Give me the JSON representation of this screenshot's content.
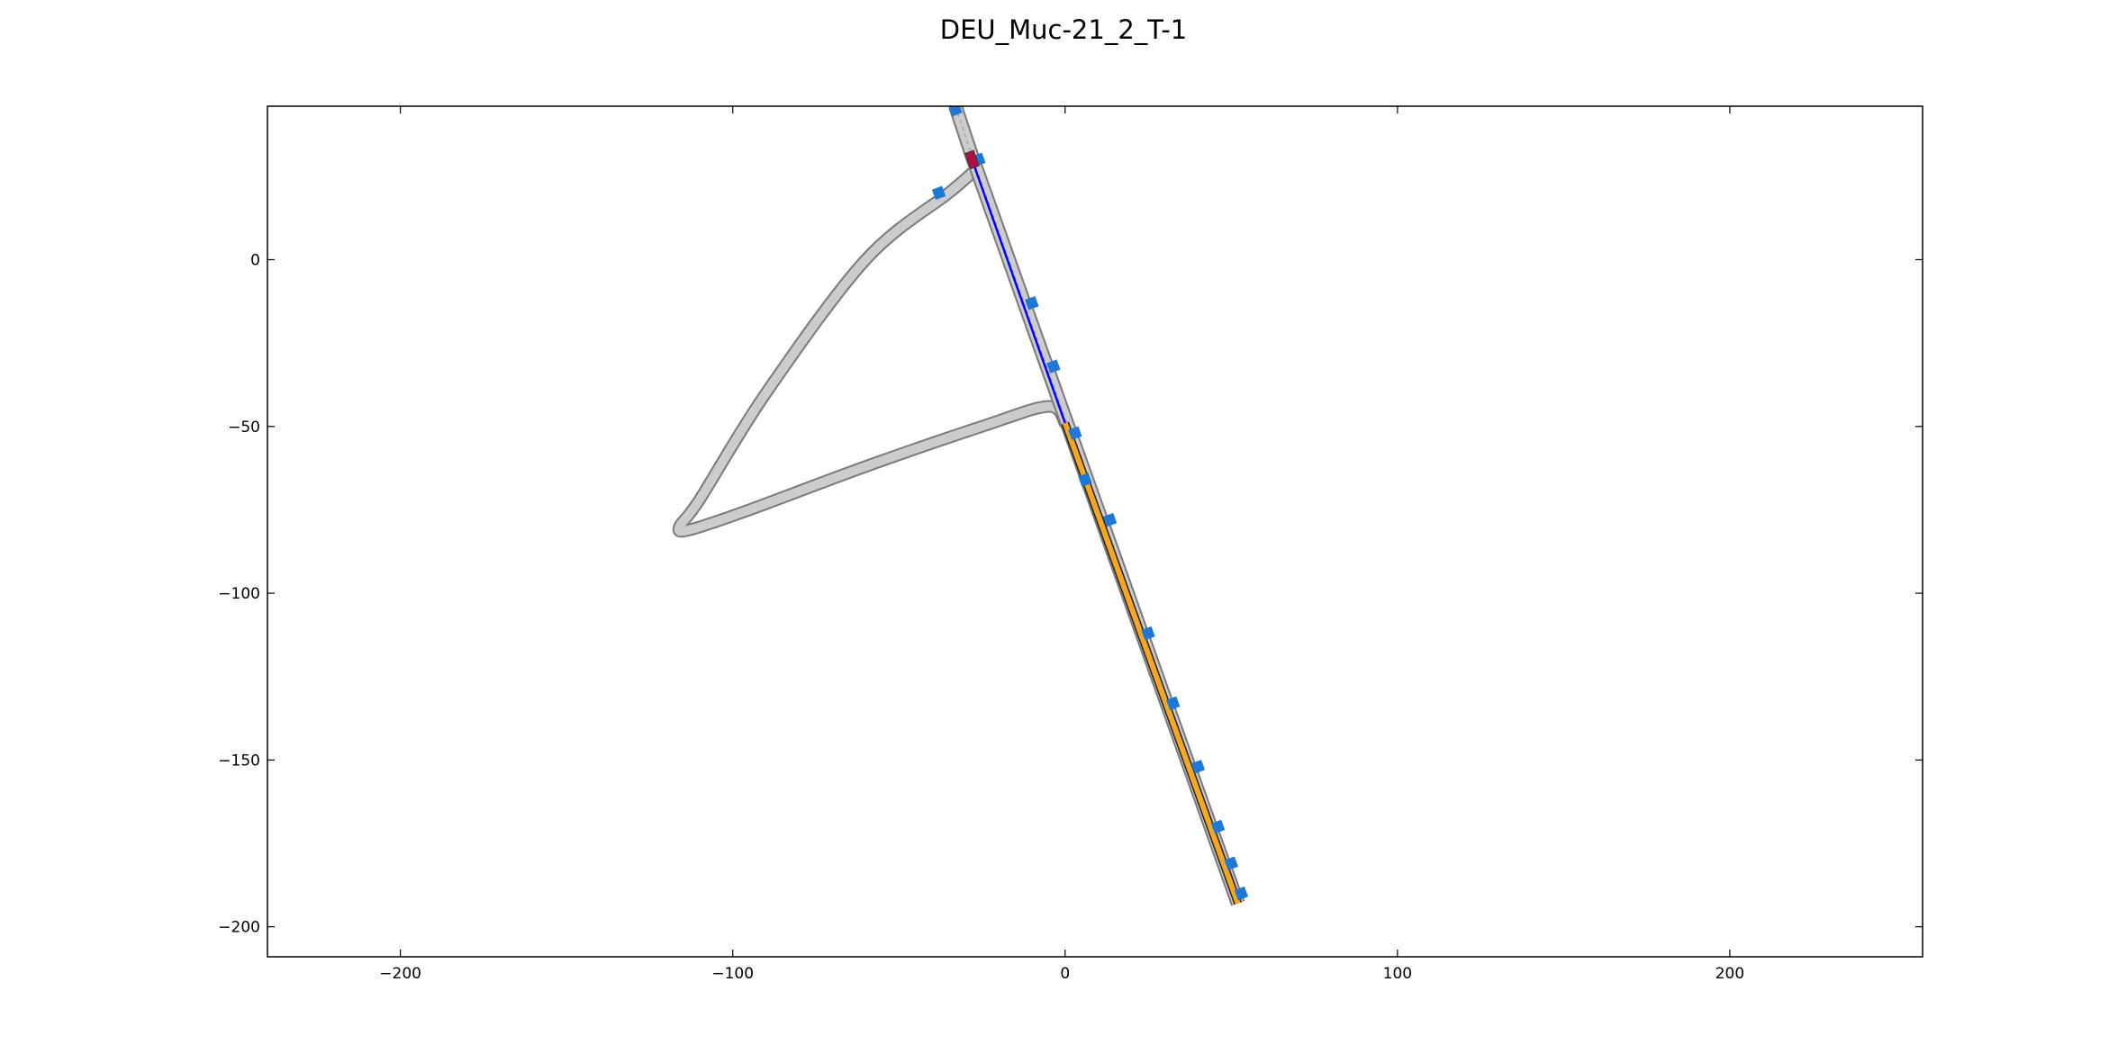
{
  "title": "DEU_Muc-21_2_T-1",
  "axes": {
    "xlim": [
      -240,
      258
    ],
    "ylim": [
      -209,
      46
    ],
    "xticks": [
      {
        "value": -200,
        "label": "−200"
      },
      {
        "value": -100,
        "label": "−100"
      },
      {
        "value": 0,
        "label": "0"
      },
      {
        "value": 100,
        "label": "100"
      },
      {
        "value": 200,
        "label": "200"
      }
    ],
    "yticks": [
      {
        "value": 0,
        "label": "0"
      },
      {
        "value": -50,
        "label": "−50"
      },
      {
        "value": -100,
        "label": "−100"
      },
      {
        "value": -150,
        "label": "−150"
      },
      {
        "value": -200,
        "label": "−200"
      }
    ],
    "grid": false
  },
  "colors": {
    "road_fill": "#cccccc",
    "road_edge": "#7a7a7a",
    "marker_blue": "#1f78d4",
    "planned_route": "#0000ff",
    "ego_start": "#b01040",
    "goal_fill": "#f5a623",
    "goal_edge": "#222222"
  },
  "scene": {
    "main_road": {
      "x": [
        -33,
        -28,
        52
      ],
      "y": [
        46,
        31,
        -193
      ]
    },
    "loop_road": {
      "x": [
        -28,
        -35,
        -60,
        -90,
        -110,
        -116,
        -113,
        -95,
        -60,
        -25,
        -5,
        0
      ],
      "y": [
        26,
        20,
        0,
        -40,
        -72,
        -80,
        -81,
        -75,
        -62,
        -50,
        -44,
        -49
      ]
    },
    "markers": {
      "x": [
        -33,
        -26,
        -38,
        -10,
        -3.5,
        3,
        6,
        13.5,
        25,
        32.5,
        40,
        46,
        50,
        53
      ],
      "y": [
        45,
        30,
        20,
        -13,
        -32,
        -52,
        -66,
        -78,
        -112,
        -133,
        -152,
        -170,
        -181,
        -190
      ]
    },
    "ego_start": {
      "x": -28,
      "y": 30
    },
    "planned_route": {
      "x": [
        -28,
        0
      ],
      "y": [
        30,
        -49
      ]
    },
    "goal_region": {
      "x": [
        0,
        52
      ],
      "y": [
        -49,
        -193
      ]
    }
  }
}
